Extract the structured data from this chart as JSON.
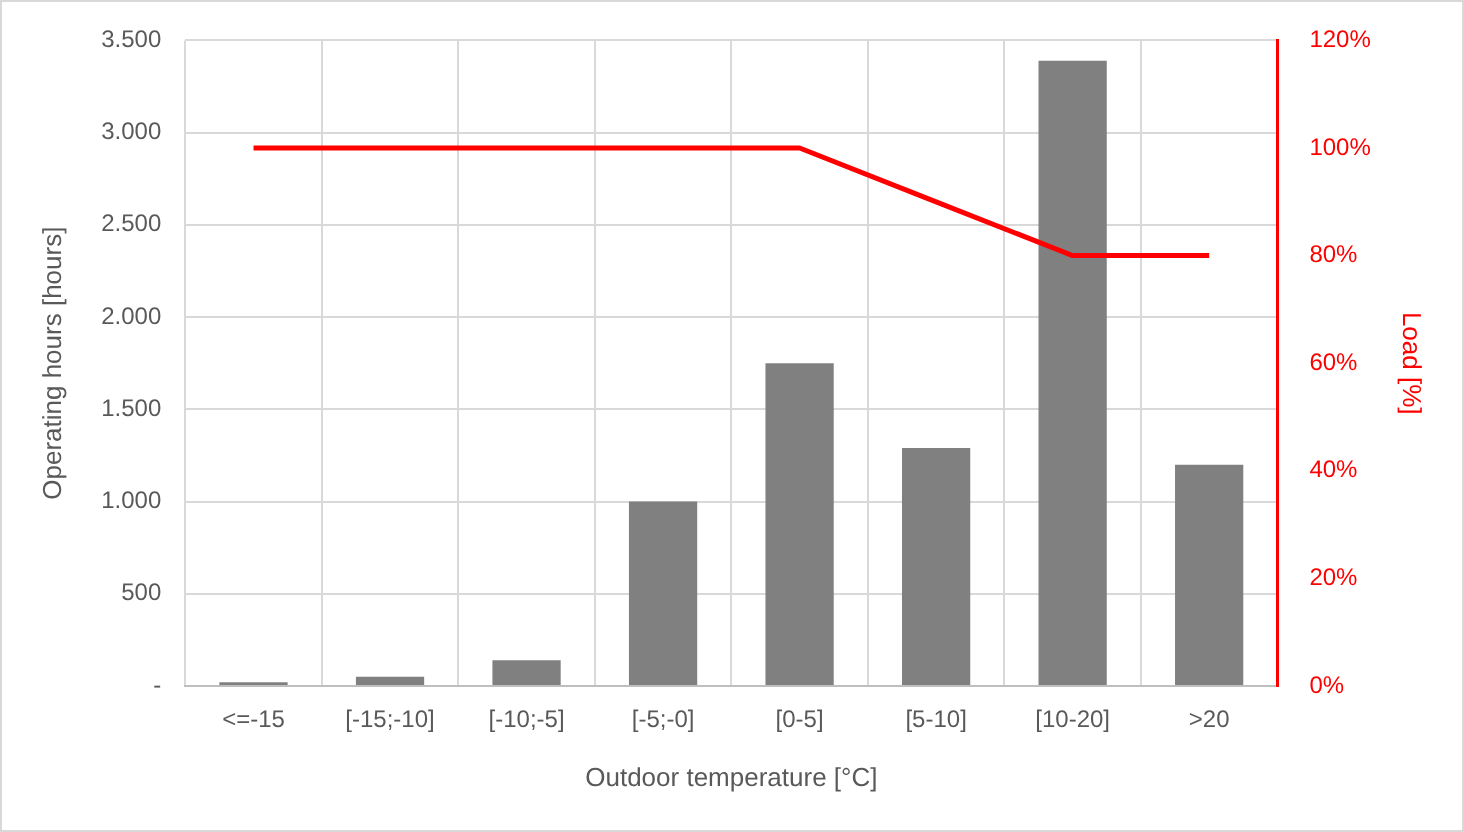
{
  "chart_data": {
    "type": "bar",
    "xlabel": "Outdoor temperature [°C]",
    "ylabel": "Operating hours [hours]",
    "y2label": "Load [%]",
    "categories": [
      "<=-15",
      "[-15;-10]",
      "[-10;-5]",
      "[-5;-0]",
      "[0-5]",
      "[5-10]",
      "[10-20]",
      ">20"
    ],
    "series": [
      {
        "color": "#808080",
        "values": [
          20,
          50,
          140,
          1000,
          1750,
          1290,
          3390,
          1200
        ]
      },
      {
        "type": "line",
        "color": "#ff0000",
        "axis": "y2",
        "marker": "none",
        "values": [
          100,
          100,
          100,
          100,
          100,
          90,
          80,
          80
        ]
      }
    ],
    "ylim": [
      0,
      3500
    ],
    "yticks": [
      {
        "value": 0,
        "label": "-"
      },
      {
        "value": 500,
        "label": "500"
      },
      {
        "value": 1000,
        "label": "1.000"
      },
      {
        "value": 1500,
        "label": "1.500"
      },
      {
        "value": 2000,
        "label": "2.000"
      },
      {
        "value": 2500,
        "label": "2.500"
      },
      {
        "value": 3000,
        "label": "3.000"
      },
      {
        "value": 3500,
        "label": "3.500"
      }
    ],
    "y2lim": [
      0,
      120
    ],
    "y2ticks": [
      {
        "value": 0,
        "label": "0%"
      },
      {
        "value": 20,
        "label": "20%"
      },
      {
        "value": 40,
        "label": "40%"
      },
      {
        "value": 60,
        "label": "60%"
      },
      {
        "value": 80,
        "label": "80%"
      },
      {
        "value": 100,
        "label": "100%"
      },
      {
        "value": 120,
        "label": "120%"
      }
    ],
    "grid": true,
    "legend": false
  }
}
